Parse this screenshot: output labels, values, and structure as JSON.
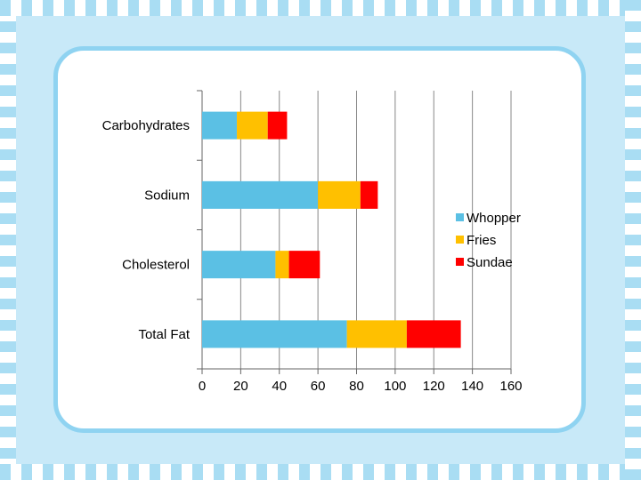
{
  "chart_data": {
    "type": "bar",
    "orientation": "horizontal",
    "stacked": true,
    "categories": [
      "Carbohydrates",
      "Sodium",
      "Cholesterol",
      "Total Fat"
    ],
    "series": [
      {
        "name": "Whopper",
        "color": "#5bc0e4",
        "values": [
          18,
          60,
          38,
          75
        ]
      },
      {
        "name": "Fries",
        "color": "#ffc000",
        "values": [
          16,
          22,
          7,
          31
        ]
      },
      {
        "name": "Sundae",
        "color": "#ff0000",
        "values": [
          10,
          9,
          16,
          28
        ]
      }
    ],
    "xlim": [
      0,
      160
    ],
    "xticks": [
      "0",
      "20",
      "40",
      "60",
      "80",
      "100",
      "120",
      "140",
      "160"
    ],
    "grid": "vertical",
    "legend": "right",
    "title": "",
    "xlabel": "",
    "ylabel": ""
  },
  "colors": {
    "frame": "#c8e9f8",
    "card_border": "#8fd3f1",
    "stripes": "#a9ddf3"
  }
}
